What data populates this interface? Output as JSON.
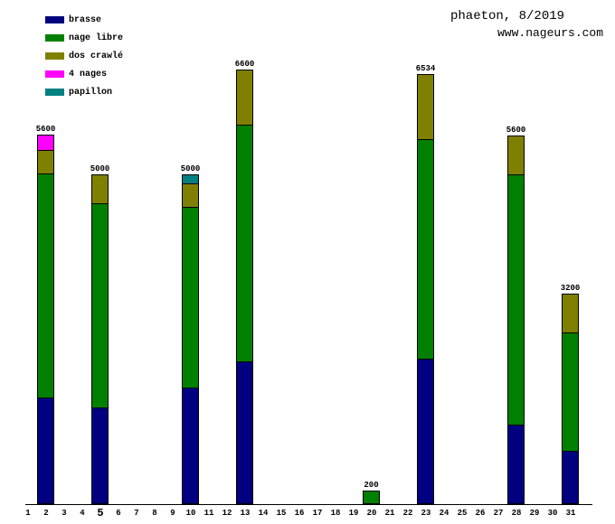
{
  "header": {
    "title": "phaeton, 8/2019",
    "website": "www.nageurs.com"
  },
  "legend": {
    "items": [
      {
        "id": "brasse",
        "label": "brasse",
        "color": "#000080"
      },
      {
        "id": "nage-libre",
        "label": "nage libre",
        "color": "#008000"
      },
      {
        "id": "dos-crawle",
        "label": "dos crawlé",
        "color": "#808000"
      },
      {
        "id": "4-nages",
        "label": "4 nages",
        "color": "#ff00ff"
      },
      {
        "id": "papillon",
        "label": "papillon",
        "color": "#008080"
      }
    ]
  },
  "chart_data": {
    "type": "bar",
    "stacked": true,
    "title": "phaeton, 8/2019",
    "xlabel": "",
    "ylabel": "",
    "ylim": [
      0,
      6600
    ],
    "grid": false,
    "legend_position": "top-left",
    "x_categories": [
      "1",
      "2",
      "3",
      "4",
      "5",
      "6",
      "7",
      "8",
      "9",
      "10",
      "11",
      "12",
      "13",
      "14",
      "15",
      "16",
      "17",
      "18",
      "19",
      "20",
      "21",
      "22",
      "23",
      "24",
      "25",
      "26",
      "27",
      "28",
      "29",
      "30",
      "31"
    ],
    "emphasized_x_label": "5",
    "series": [
      {
        "name": "brasse",
        "color": "#000080"
      },
      {
        "name": "nage libre",
        "color": "#008000"
      },
      {
        "name": "dos crawlé",
        "color": "#808000"
      },
      {
        "name": "4 nages",
        "color": "#ff00ff"
      },
      {
        "name": "papillon",
        "color": "#008080"
      }
    ],
    "bars": [
      {
        "day": 2,
        "total": 5600,
        "segments": {
          "brasse": 1600,
          "nage libre": 3400,
          "dos crawlé": 350,
          "4 nages": 250
        }
      },
      {
        "day": 5,
        "total": 5000,
        "segments": {
          "brasse": 1450,
          "nage libre": 3100,
          "dos crawlé": 450
        }
      },
      {
        "day": 10,
        "total": 5000,
        "segments": {
          "brasse": 1750,
          "nage libre": 2750,
          "dos crawlé": 350,
          "papillon": 150
        }
      },
      {
        "day": 13,
        "total": 6600,
        "segments": {
          "brasse": 2150,
          "nage libre": 3600,
          "dos crawlé": 850
        }
      },
      {
        "day": 20,
        "total": 200,
        "segments": {
          "nage libre": 200
        }
      },
      {
        "day": 23,
        "total": 6534,
        "segments": {
          "brasse": 2200,
          "nage libre": 3334,
          "dos crawlé": 1000
        }
      },
      {
        "day": 28,
        "total": 5600,
        "segments": {
          "brasse": 1200,
          "nage libre": 3800,
          "dos crawlé": 600
        }
      },
      {
        "day": 31,
        "total": 3200,
        "segments": {
          "brasse": 800,
          "nage libre": 1800,
          "dos crawlé": 600
        }
      }
    ]
  }
}
